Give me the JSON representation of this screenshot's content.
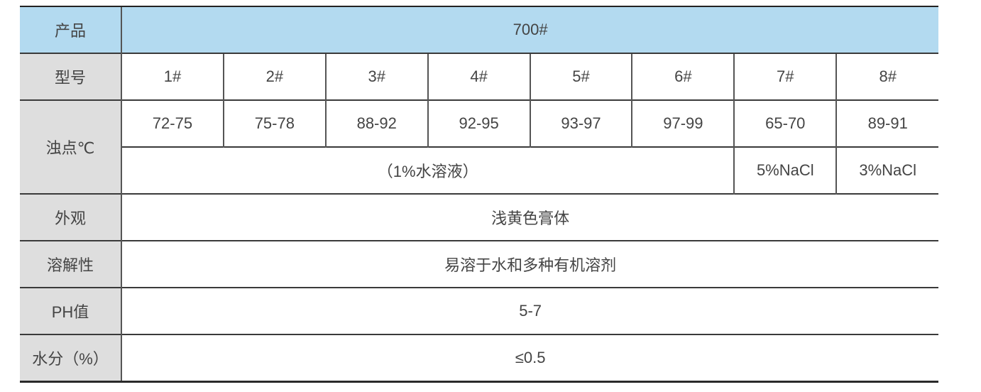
{
  "table": {
    "product_label": "产品",
    "product_value": "700#",
    "model_label": "型号",
    "models": [
      "1#",
      "2#",
      "3#",
      "4#",
      "5#",
      "6#",
      "7#",
      "8#"
    ],
    "cloud_point_label": "浊点℃",
    "cloud_points": [
      "72-75",
      "75-78",
      "88-92",
      "92-95",
      "93-97",
      "97-99",
      "65-70",
      "89-91"
    ],
    "cloud_conditions": [
      "（1%水溶液）",
      "5%NaCl",
      "3%NaCl"
    ],
    "appearance_label": "外观",
    "appearance_value": "浅黄色膏体",
    "solubility_label": "溶解性",
    "solubility_value": "易溶于水和多种有机溶剂",
    "ph_label": "PH值",
    "ph_value": "5-7",
    "moisture_label": "水分（%）",
    "moisture_value": "≤0.5"
  },
  "colors": {
    "header_bg": "#b3daf0",
    "label_bg": "#dedede",
    "text": "#444444"
  }
}
